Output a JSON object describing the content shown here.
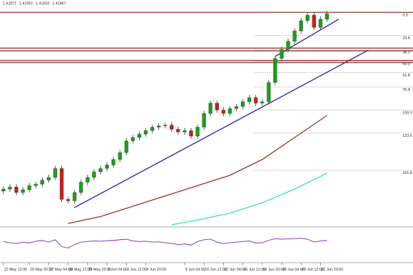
{
  "chart_data": {
    "type": "candlestick",
    "header_values": [
      1.41871,
      1.41951,
      1.41833,
      1.41867
    ],
    "open": [
      1.3935,
      1.3938,
      1.3941,
      1.3933,
      1.3937,
      1.3943,
      1.3945,
      1.3951,
      1.3955,
      1.3968,
      1.3923,
      1.3921,
      1.3933,
      1.3948,
      1.3955,
      1.3963,
      1.3968,
      1.3973,
      1.3981,
      1.3991,
      1.4008,
      1.4013,
      1.4018,
      1.4023,
      1.4028,
      1.403,
      1.4031,
      1.4025,
      1.4021,
      1.4023,
      1.4015,
      1.4028,
      1.4048,
      1.4063,
      1.4053,
      1.4048,
      1.4055,
      1.4058,
      1.4065,
      1.4071,
      1.4063,
      1.4065,
      1.4093,
      1.4128,
      1.4141,
      1.4153,
      1.4168,
      1.4183,
      1.4191,
      1.4173,
      1.4185
    ],
    "high": [
      1.3942,
      1.3945,
      1.3945,
      1.3941,
      1.3947,
      1.3949,
      1.3955,
      1.3959,
      1.3972,
      1.3972,
      1.3927,
      1.3937,
      1.3952,
      1.3959,
      1.3967,
      1.3972,
      1.3977,
      1.3985,
      1.3995,
      1.4012,
      1.4017,
      1.4022,
      1.4027,
      1.4032,
      1.4034,
      1.4035,
      1.4035,
      1.4029,
      1.4027,
      1.4027,
      1.4032,
      1.4052,
      1.4067,
      1.4067,
      1.4057,
      1.4059,
      1.4062,
      1.4069,
      1.4075,
      1.4075,
      1.4069,
      1.4097,
      1.4132,
      1.4145,
      1.4157,
      1.4172,
      1.4187,
      1.4195,
      1.4195,
      1.4189,
      1.4197
    ],
    "low": [
      1.3931,
      1.3934,
      1.3929,
      1.3929,
      1.3933,
      1.3939,
      1.3941,
      1.3947,
      1.3951,
      1.3919,
      1.3917,
      1.3917,
      1.3929,
      1.3944,
      1.3951,
      1.3959,
      1.3964,
      1.3969,
      1.3977,
      1.3987,
      1.4004,
      1.4009,
      1.4014,
      1.4019,
      1.4024,
      1.4026,
      1.4021,
      1.4017,
      1.4017,
      1.4011,
      1.4011,
      1.4024,
      1.4044,
      1.4049,
      1.4044,
      1.4044,
      1.4051,
      1.4054,
      1.4061,
      1.4059,
      1.4059,
      1.4061,
      1.4089,
      1.4124,
      1.4137,
      1.4149,
      1.4164,
      1.4179,
      1.4169,
      1.4169,
      1.4181
    ],
    "close": [
      1.3938,
      1.3941,
      1.3933,
      1.3937,
      1.3943,
      1.3945,
      1.3951,
      1.3955,
      1.3968,
      1.3923,
      1.3921,
      1.3933,
      1.3948,
      1.3955,
      1.3963,
      1.3968,
      1.3973,
      1.3981,
      1.3991,
      1.4008,
      1.4013,
      1.4018,
      1.4023,
      1.4028,
      1.403,
      1.4031,
      1.4025,
      1.4021,
      1.4023,
      1.4015,
      1.4028,
      1.4048,
      1.4063,
      1.4053,
      1.4048,
      1.4055,
      1.4058,
      1.4065,
      1.4071,
      1.4063,
      1.4065,
      1.4093,
      1.4128,
      1.4141,
      1.4153,
      1.4168,
      1.4183,
      1.4191,
      1.4173,
      1.4185,
      1.4193
    ],
    "up_color": "#17a317",
    "down_color": "#d11a1a",
    "ylim": [
      1.3883,
      1.4213
    ],
    "moving_averages": [
      {
        "color": "#a0281e",
        "x": [
          10,
          15,
          20,
          25,
          30,
          35,
          40,
          45,
          50
        ],
        "values": [
          1.3888,
          1.3898,
          1.3913,
          1.3928,
          1.3943,
          1.3958,
          1.3981,
          1.4013,
          1.4045
        ]
      },
      {
        "color": "#2ee6a0",
        "x": [
          26,
          30,
          35,
          40,
          45,
          50
        ],
        "values": [
          1.3886,
          1.3893,
          1.3903,
          1.3918,
          1.3938,
          1.3961
        ]
      }
    ],
    "horizontal_lines": [
      1.4195,
      1.4143,
      1.4139,
      1.4125,
      1.4122
    ],
    "horizontal_color": "#8b1a1a",
    "fib_high": 1.4195,
    "fib_low": 1.4053,
    "fib_levels": [
      {
        "value": 0,
        "label": "0.0"
      },
      23.6,
      38.2,
      {
        "value": 50,
        "label": "50.0"
      },
      61.8,
      76.4,
      {
        "value": 100,
        "label": "100.0"
      },
      123.6,
      161.8
    ],
    "rsi": {
      "color": "#7a1fa2",
      "ylim": [
        0,
        100
      ],
      "values": [
        62,
        58,
        55,
        60,
        57,
        63,
        66,
        60,
        68,
        45,
        40,
        52,
        60,
        62,
        64,
        63,
        65,
        66,
        68,
        70,
        64,
        62,
        63,
        60,
        61,
        58,
        55,
        52,
        54,
        50,
        62,
        68,
        70,
        60,
        55,
        58,
        60,
        62,
        64,
        57,
        58,
        66,
        72,
        70,
        71,
        72,
        73,
        70,
        60,
        64,
        66
      ]
    },
    "xticks": [
      {
        "value": 0,
        "label": "22 May 12:00"
      },
      {
        "value": 4,
        "label": "25 May 20:00"
      },
      {
        "value": 7,
        "label": "27 May 04:00"
      },
      {
        "value": 10,
        "label": "28 May 12:00"
      },
      {
        "value": 13,
        "label": "29 May 20:00"
      },
      {
        "value": 16,
        "label": "2 Jun 04:00"
      },
      {
        "value": 19,
        "label": "3 Jun 12:00"
      },
      {
        "value": 22,
        "label": "4 Jun 20:00"
      },
      {
        "value": 28,
        "label": "9 Jun 04:00"
      },
      {
        "value": 31,
        "label": "10 Jun 12:00"
      },
      {
        "value": 34,
        "label": "12 Jun 04:00"
      },
      {
        "value": 37,
        "label": "15 Jun 12:00"
      },
      {
        "value": 40,
        "label": "16 Jun 20:00"
      },
      {
        "value": 43,
        "label": "18 Jun 04:00"
      },
      {
        "value": 46,
        "label": "19 Jun 12:00"
      },
      {
        "value": 49,
        "label": "22 Jun 20:00"
      }
    ]
  }
}
